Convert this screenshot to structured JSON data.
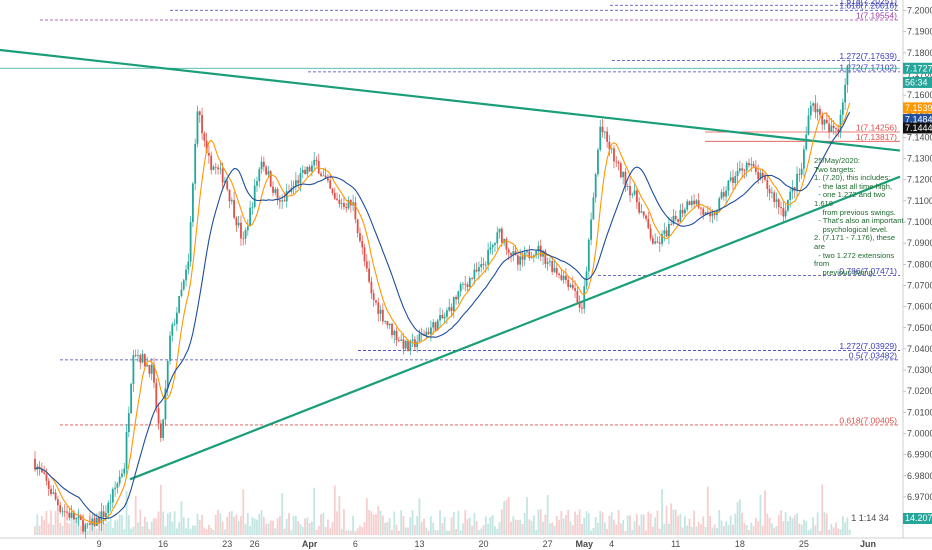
{
  "chart_data": {
    "type": "candlestick",
    "price_axis": {
      "ticks": [
        "7.20000",
        "7.19000",
        "7.18000",
        "7.17000",
        "7.16000",
        "7.15000",
        "7.14000",
        "7.13000",
        "7.12000",
        "7.11000",
        "7.10000",
        "7.09000",
        "7.08000",
        "7.07000",
        "7.06000",
        "7.05000",
        "7.04000",
        "7.03000",
        "7.02000",
        "7.01000",
        "7.00000",
        "6.99000",
        "6.98000",
        "6.97000",
        "6.96000"
      ],
      "range": [
        6.952,
        7.205
      ]
    },
    "time_axis": {
      "ticks": [
        "9",
        "16",
        "23",
        "26",
        "Apr",
        "6",
        "13",
        "20",
        "27",
        "May",
        "4",
        "11",
        "18",
        "25",
        "Jun"
      ]
    },
    "fib_levels": [
      {
        "label": "1.618(7.20251)",
        "value": 7.20251,
        "color": "#3a3fb5",
        "style": "dashed"
      },
      {
        "label": "1.618(7.20016)",
        "value": 7.20016,
        "color": "#3a3fb5",
        "style": "dashed"
      },
      {
        "label": "1(7.19554)",
        "value": 7.19554,
        "color": "#a03aa8",
        "style": "dashed"
      },
      {
        "label": "1.272(7.17639)",
        "value": 7.17639,
        "color": "#3a3fb5",
        "style": "dashed"
      },
      {
        "label": "1.272(7.17102)",
        "value": 7.17102,
        "color": "#3a3fb5",
        "style": "dashed"
      },
      {
        "label": "1(7.14256)",
        "value": 7.14256,
        "color": "#e0504a",
        "style": "solid"
      },
      {
        "label": "1(7.13817)",
        "value": 7.13817,
        "color": "#e0504a",
        "style": "solid"
      },
      {
        "label": "0.786(7.07471)",
        "value": 7.07471,
        "color": "#3a3fb5",
        "style": "dashed"
      },
      {
        "label": "1.272(7.03929)",
        "value": 7.03929,
        "color": "#3a3fb5",
        "style": "dashed"
      },
      {
        "label": "0.5(7.03482)",
        "value": 7.03482,
        "color": "#3a3fb5",
        "style": "dashed"
      },
      {
        "label": "0.618(7.00405)",
        "value": 7.00405,
        "color": "#e0504a",
        "style": "dashed"
      }
    ],
    "price_tags": [
      {
        "label": "7.17271",
        "value": 7.17271,
        "color": "#26a69a"
      },
      {
        "label": "56:34",
        "value": 7.166,
        "color": "#26a69a"
      },
      {
        "label": "7.15398",
        "value": 7.15398,
        "color": "#ff9800"
      },
      {
        "label": "7.14846",
        "value": 7.14846,
        "color": "#1f4e9c"
      },
      {
        "label": "7.14448",
        "value": 7.14448,
        "color": "#111111"
      }
    ],
    "volume_tag": {
      "label": "14.207K",
      "color": "#26a69a"
    },
    "volume_legend": "1 1:14 34",
    "annotation": "25/May/2020:\nTwo targets:\n1. (7.20), this includes:\n  - the last all time high,\n  - one 1.272 and two 1.618\n    from previous swings.\n  - That's also an important\n    psychological level.\n2. (7.171 - 7.176), these are\n  - two 1.272 extensions from\n    previous swing.",
    "trendlines": [
      {
        "name": "descending-resistance",
        "color": "#1a9e77",
        "points": [
          [
            "2020-03-02",
            7.1795
          ],
          [
            "2020-06-01",
            7.1355
          ]
        ]
      },
      {
        "name": "ascending-support",
        "color": "#1a9e77",
        "points": [
          [
            "2020-03-16",
            6.9845
          ],
          [
            "2020-06-01",
            7.1155
          ]
        ]
      }
    ],
    "colors": {
      "up": "#26a69a",
      "down": "#e0504a",
      "ma_fast": "#ff9800",
      "ma_slow": "#1f4e9c"
    }
  }
}
